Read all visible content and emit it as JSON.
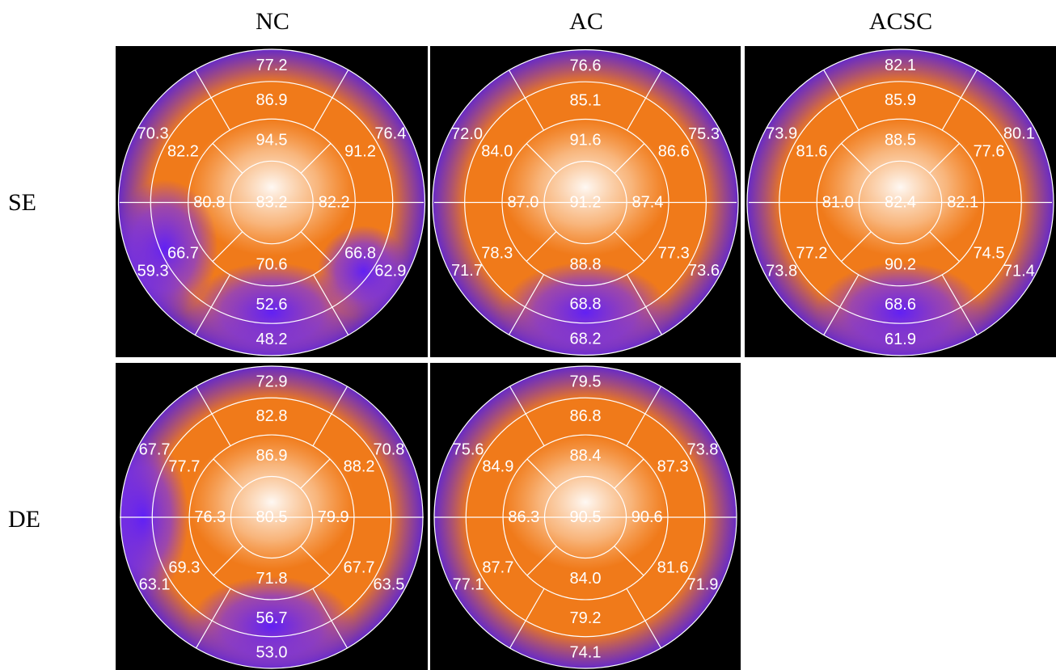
{
  "columns": [
    "NC",
    "AC",
    "ACSC"
  ],
  "rows": [
    "SE",
    "DE"
  ],
  "colors": {
    "orange": "#f07a1a",
    "purple": "#7a32e8",
    "white": "#ffffff",
    "background": "#000000"
  },
  "maps": [
    {
      "row": "SE",
      "col": "NC",
      "apex": "83.2",
      "apical": [
        "70.6",
        "80.8",
        "94.5",
        "82.2"
      ],
      "mid": [
        "52.6",
        "66.7",
        "82.2",
        "86.9",
        "91.2",
        "66.8"
      ],
      "basal": [
        "48.2",
        "59.3",
        "70.3",
        "77.2",
        "76.4",
        "62.9"
      ],
      "low_sectors": [
        "inferior",
        "inferolateral-basal",
        "inferoseptal-basal"
      ]
    },
    {
      "row": "SE",
      "col": "AC",
      "apex": "91.2",
      "apical": [
        "88.8",
        "87.0",
        "91.6",
        "87.4"
      ],
      "mid": [
        "68.8",
        "78.3",
        "84.0",
        "85.1",
        "86.6",
        "77.3"
      ],
      "basal": [
        "68.2",
        "71.7",
        "72.0",
        "76.6",
        "75.3",
        "73.6"
      ],
      "low_sectors": [
        "inferior"
      ]
    },
    {
      "row": "SE",
      "col": "ACSC",
      "apex": "82.4",
      "apical": [
        "90.2",
        "81.0",
        "88.5",
        "82.1"
      ],
      "mid": [
        "68.6",
        "77.2",
        "81.6",
        "85.9",
        "77.6",
        "74.5"
      ],
      "basal": [
        "61.9",
        "73.8",
        "73.9",
        "82.1",
        "80.1",
        "71.4"
      ],
      "low_sectors": [
        "inferior"
      ]
    },
    {
      "row": "DE",
      "col": "NC",
      "apex": "80.5",
      "apical": [
        "71.8",
        "76.3",
        "86.9",
        "79.9"
      ],
      "mid": [
        "56.7",
        "69.3",
        "77.7",
        "82.8",
        "88.2",
        "67.7"
      ],
      "basal": [
        "53.0",
        "63.1",
        "67.7",
        "72.9",
        "70.8",
        "63.5"
      ],
      "low_sectors": [
        "inferior",
        "septal"
      ]
    },
    {
      "row": "DE",
      "col": "AC",
      "apex": "90.5",
      "apical": [
        "84.0",
        "86.3",
        "88.4",
        "90.6"
      ],
      "mid": [
        "79.2",
        "87.7",
        "84.9",
        "86.8",
        "87.3",
        "81.6"
      ],
      "basal": [
        "74.1",
        "77.1",
        "75.6",
        "79.5",
        "73.8",
        "71.9"
      ],
      "low_sectors": []
    }
  ]
}
